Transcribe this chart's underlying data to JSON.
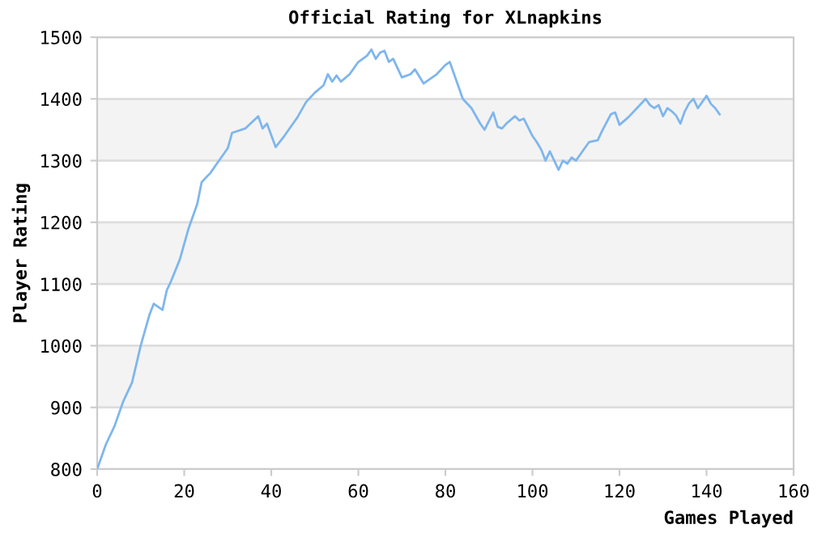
{
  "chart_data": {
    "type": "line",
    "title": "Official Rating for XLnapkins",
    "xlabel": "Games Played",
    "ylabel": "Player Rating",
    "xlim": [
      0,
      160
    ],
    "xticks": [
      0,
      20,
      40,
      60,
      80,
      100,
      120,
      140,
      160
    ],
    "ylim": [
      800,
      1500
    ],
    "yticks": [
      800,
      900,
      1000,
      1100,
      1200,
      1300,
      1400,
      1500
    ],
    "grid": "y",
    "marker": "none",
    "line_style": "solid",
    "series": [
      {
        "color": "#7eb6ee",
        "x": [
          0,
          2,
          4,
          6,
          8,
          10,
          12,
          13,
          15,
          16,
          17,
          19,
          21,
          23,
          24,
          26,
          28,
          30,
          31,
          34,
          37,
          38,
          39,
          41,
          43,
          45,
          46,
          48,
          50,
          52,
          53,
          54,
          55,
          56,
          58,
          60,
          62,
          63,
          64,
          65,
          66,
          67,
          68,
          70,
          72,
          73,
          75,
          76,
          78,
          80,
          81,
          83,
          84,
          86,
          88,
          89,
          91,
          92,
          93,
          94,
          96,
          97,
          98,
          100,
          101,
          102,
          103,
          104,
          106,
          107,
          108,
          109,
          110,
          112,
          113,
          115,
          116,
          118,
          119,
          120,
          122,
          124,
          126,
          127,
          128,
          129,
          130,
          131,
          132,
          133,
          134,
          135,
          136,
          137,
          138,
          139,
          140,
          141,
          142,
          143
        ],
        "values": [
          800,
          840,
          870,
          910,
          940,
          1000,
          1050,
          1068,
          1058,
          1090,
          1105,
          1140,
          1190,
          1230,
          1265,
          1280,
          1300,
          1320,
          1345,
          1352,
          1372,
          1352,
          1360,
          1322,
          1340,
          1360,
          1370,
          1395,
          1410,
          1422,
          1440,
          1428,
          1438,
          1428,
          1440,
          1460,
          1470,
          1480,
          1465,
          1475,
          1478,
          1460,
          1465,
          1435,
          1440,
          1448,
          1425,
          1430,
          1440,
          1455,
          1460,
          1420,
          1400,
          1385,
          1360,
          1350,
          1378,
          1355,
          1352,
          1360,
          1372,
          1365,
          1368,
          1340,
          1330,
          1318,
          1300,
          1315,
          1285,
          1300,
          1295,
          1305,
          1300,
          1320,
          1330,
          1333,
          1348,
          1375,
          1378,
          1358,
          1370,
          1385,
          1400,
          1390,
          1385,
          1390,
          1372,
          1385,
          1380,
          1373,
          1360,
          1380,
          1393,
          1400,
          1385,
          1395,
          1405,
          1392,
          1385,
          1375
        ]
      }
    ]
  }
}
